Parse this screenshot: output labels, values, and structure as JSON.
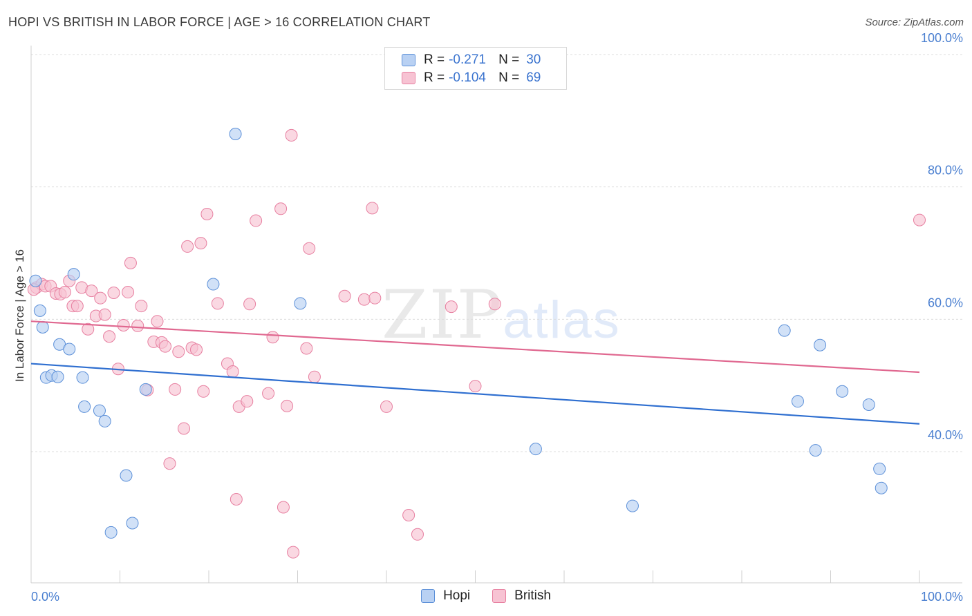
{
  "header": {
    "title": "HOPI VS BRITISH IN LABOR FORCE | AGE > 16 CORRELATION CHART",
    "source": "Source: ZipAtlas.com"
  },
  "legend": {
    "hopi": {
      "r_label": "R =",
      "r_value": "-0.271",
      "n_label": "N =",
      "n_value": "30"
    },
    "british": {
      "r_label": "R =",
      "r_value": "-0.104",
      "n_label": "N =",
      "n_value": "69"
    }
  },
  "bottom_legend": {
    "hopi": "Hopi",
    "british": "British"
  },
  "watermark": {
    "zip": "ZIP",
    "atlas": "atlas"
  },
  "chart_data": {
    "type": "scatter",
    "title": "HOPI VS BRITISH IN LABOR FORCE | AGE > 16 CORRELATION CHART",
    "xlabel": "",
    "ylabel": "In Labor Force | Age > 16",
    "xlim": [
      0,
      100
    ],
    "ylim": [
      20,
      104
    ],
    "x_tick_labels": {
      "left": "0.0%",
      "right": "100.0%"
    },
    "y_ticks": [
      {
        "value": 40,
        "label": "40.0%"
      },
      {
        "value": 60,
        "label": "60.0%"
      },
      {
        "value": 80,
        "label": "80.0%"
      },
      {
        "value": 100,
        "label": "100.0%"
      }
    ],
    "grid": true,
    "colors": {
      "hopi": "#5b8fd8",
      "hopi_fill": "#b9d1f3",
      "british": "#e77fa0",
      "british_fill": "#f7c3d3",
      "hopi_line": "#2f6fd0",
      "british_line": "#e06890"
    },
    "series": [
      {
        "name": "Hopi",
        "trend": {
          "x": [
            0,
            100
          ],
          "y": [
            53.3,
            44.2
          ]
        },
        "points": [
          [
            0.5,
            65.8
          ],
          [
            1.0,
            61.3
          ],
          [
            1.3,
            58.8
          ],
          [
            1.7,
            51.2
          ],
          [
            2.3,
            51.5
          ],
          [
            3.0,
            51.3
          ],
          [
            3.2,
            56.2
          ],
          [
            4.3,
            55.5
          ],
          [
            4.8,
            66.8
          ],
          [
            5.8,
            51.2
          ],
          [
            6.0,
            46.8
          ],
          [
            7.7,
            46.2
          ],
          [
            8.3,
            44.6
          ],
          [
            9.0,
            27.8
          ],
          [
            10.7,
            36.4
          ],
          [
            11.4,
            29.2
          ],
          [
            12.9,
            49.4
          ],
          [
            20.5,
            65.3
          ],
          [
            23.0,
            88.0
          ],
          [
            30.3,
            62.4
          ],
          [
            56.8,
            40.4
          ],
          [
            67.7,
            31.8
          ],
          [
            84.8,
            58.3
          ],
          [
            86.3,
            47.6
          ],
          [
            88.3,
            40.2
          ],
          [
            88.8,
            56.1
          ],
          [
            91.3,
            49.1
          ],
          [
            94.3,
            47.1
          ],
          [
            95.5,
            37.4
          ],
          [
            95.7,
            34.5
          ]
        ]
      },
      {
        "name": "British",
        "trend": {
          "x": [
            0,
            100
          ],
          "y": [
            59.7,
            52.0
          ]
        },
        "points": [
          [
            0.6,
            64.8
          ],
          [
            1.2,
            65.3
          ],
          [
            1.6,
            65.0
          ],
          [
            2.2,
            65.0
          ],
          [
            2.8,
            63.9
          ],
          [
            3.3,
            63.8
          ],
          [
            3.8,
            64.1
          ],
          [
            4.3,
            65.8
          ],
          [
            4.7,
            62.0
          ],
          [
            5.2,
            62.0
          ],
          [
            5.7,
            64.8
          ],
          [
            6.4,
            58.5
          ],
          [
            6.8,
            64.3
          ],
          [
            7.3,
            60.5
          ],
          [
            7.8,
            63.2
          ],
          [
            8.3,
            60.7
          ],
          [
            8.8,
            57.4
          ],
          [
            9.3,
            64.0
          ],
          [
            9.8,
            52.5
          ],
          [
            10.4,
            59.1
          ],
          [
            10.9,
            64.1
          ],
          [
            11.2,
            68.5
          ],
          [
            12.0,
            59.0
          ],
          [
            12.4,
            62.0
          ],
          [
            13.1,
            49.3
          ],
          [
            13.8,
            56.6
          ],
          [
            14.2,
            59.7
          ],
          [
            14.7,
            56.5
          ],
          [
            15.1,
            55.9
          ],
          [
            15.6,
            38.2
          ],
          [
            16.2,
            49.4
          ],
          [
            16.6,
            55.1
          ],
          [
            17.2,
            43.5
          ],
          [
            17.6,
            71.0
          ],
          [
            18.1,
            55.7
          ],
          [
            18.6,
            55.4
          ],
          [
            19.1,
            71.5
          ],
          [
            19.4,
            49.1
          ],
          [
            19.8,
            75.9
          ],
          [
            21.0,
            62.4
          ],
          [
            22.1,
            53.3
          ],
          [
            22.7,
            52.1
          ],
          [
            23.1,
            32.8
          ],
          [
            23.4,
            46.8
          ],
          [
            24.3,
            47.6
          ],
          [
            24.6,
            62.3
          ],
          [
            25.3,
            74.9
          ],
          [
            26.7,
            48.8
          ],
          [
            27.2,
            57.3
          ],
          [
            28.1,
            76.7
          ],
          [
            28.4,
            31.6
          ],
          [
            28.8,
            46.9
          ],
          [
            29.3,
            87.8
          ],
          [
            29.5,
            24.8
          ],
          [
            31.0,
            55.6
          ],
          [
            31.3,
            70.7
          ],
          [
            31.9,
            51.3
          ],
          [
            35.3,
            63.5
          ],
          [
            37.5,
            63.0
          ],
          [
            38.4,
            76.8
          ],
          [
            38.7,
            63.2
          ],
          [
            40.0,
            46.8
          ],
          [
            42.5,
            30.4
          ],
          [
            43.5,
            27.5
          ],
          [
            47.3,
            61.9
          ],
          [
            50.0,
            49.9
          ],
          [
            52.2,
            62.3
          ],
          [
            100.0,
            75.0
          ],
          [
            0.3,
            64.5
          ]
        ]
      }
    ]
  }
}
